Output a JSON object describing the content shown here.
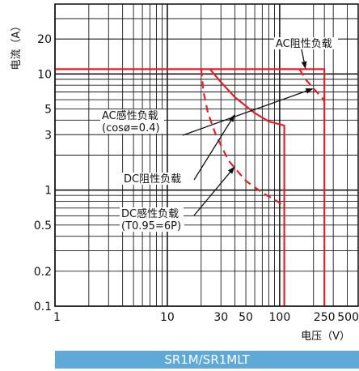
{
  "chart_data": {
    "type": "line",
    "title": "",
    "xlabel": "电压（V）",
    "ylabel": "电流（A）",
    "xscale": "log",
    "yscale": "log",
    "xlim": [
      1,
      500
    ],
    "ylim": [
      0.1,
      40
    ],
    "grid": true,
    "x_ticks": [
      {
        "value": 1,
        "label": "1"
      },
      {
        "value": 10,
        "label": "10"
      },
      {
        "value": 30,
        "label": "30"
      },
      {
        "value": 50,
        "label": "50"
      },
      {
        "value": 100,
        "label": "100"
      },
      {
        "value": 250,
        "label": "250"
      },
      {
        "value": 500,
        "label": "500"
      }
    ],
    "y_ticks": [
      {
        "value": 0.1,
        "label": "0.1"
      },
      {
        "value": 0.2,
        "label": "0.2"
      },
      {
        "value": 0.5,
        "label": "0.5"
      },
      {
        "value": 1,
        "label": "1"
      },
      {
        "value": 3,
        "label": "3"
      },
      {
        "value": 5,
        "label": "5"
      },
      {
        "value": 10,
        "label": "10"
      },
      {
        "value": 20,
        "label": "20"
      }
    ],
    "series": [
      {
        "name": "AC阻性负载",
        "style": "solid",
        "color": "#e0202a",
        "points": [
          [
            1,
            11
          ],
          [
            250,
            11
          ],
          [
            250,
            0.1
          ]
        ]
      },
      {
        "name": "AC感性负载（cosφ=0.4）",
        "style": "dashed",
        "color": "#e0202a",
        "points": [
          [
            150,
            11
          ],
          [
            170,
            9
          ],
          [
            200,
            7.5
          ],
          [
            240,
            6.2
          ],
          [
            250,
            5.8
          ]
        ]
      },
      {
        "name": "DC阻性负载",
        "style": "solid",
        "color": "#e0202a",
        "points": [
          [
            24,
            11
          ],
          [
            30,
            8.5
          ],
          [
            40,
            6.3
          ],
          [
            60,
            4.6
          ],
          [
            80,
            3.9
          ],
          [
            110,
            3.6
          ],
          [
            110,
            0.1
          ]
        ]
      },
      {
        "name": "DC感性负载（T0.95=6P）",
        "style": "dashed",
        "color": "#e0202a",
        "points": [
          [
            20,
            11
          ],
          [
            21,
            7
          ],
          [
            23,
            4.6
          ],
          [
            27,
            3
          ],
          [
            35,
            1.8
          ],
          [
            50,
            1.2
          ],
          [
            70,
            0.95
          ],
          [
            95,
            0.8
          ],
          [
            105,
            0.75
          ]
        ]
      }
    ],
    "annotations": [
      {
        "text": "AC阻性负载",
        "points_to": [
          170,
          11
        ]
      },
      {
        "line1": "AC感性负载",
        "line2": "(cosø=0.4)",
        "points_to": [
          200,
          7.5
        ]
      },
      {
        "text": "DC阻性负载",
        "points_to": [
          40,
          4.5
        ]
      },
      {
        "line1": "DC感性负载",
        "line2": "(T0.95=6P)",
        "points_to": [
          40,
          1.6
        ]
      }
    ]
  },
  "model_label": "SR1M/SR1MLT"
}
